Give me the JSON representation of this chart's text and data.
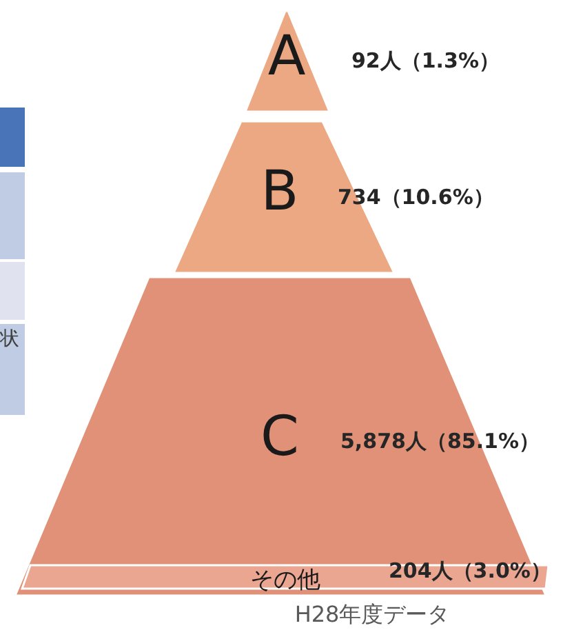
{
  "chart_data": {
    "type": "other",
    "categories": [
      "A",
      "B",
      "C",
      "その他"
    ],
    "values": [
      92,
      734,
      5878,
      204
    ],
    "value_labels": [
      "92人（1.3%）",
      "734（10.6%）",
      "5,878人（85.1%）",
      "204人（3.0%）"
    ],
    "colors": [
      "#eca882",
      "#eca882",
      "#e09177",
      "#eba692"
    ],
    "annotations": [
      "H28年度データ",
      "状"
    ]
  }
}
